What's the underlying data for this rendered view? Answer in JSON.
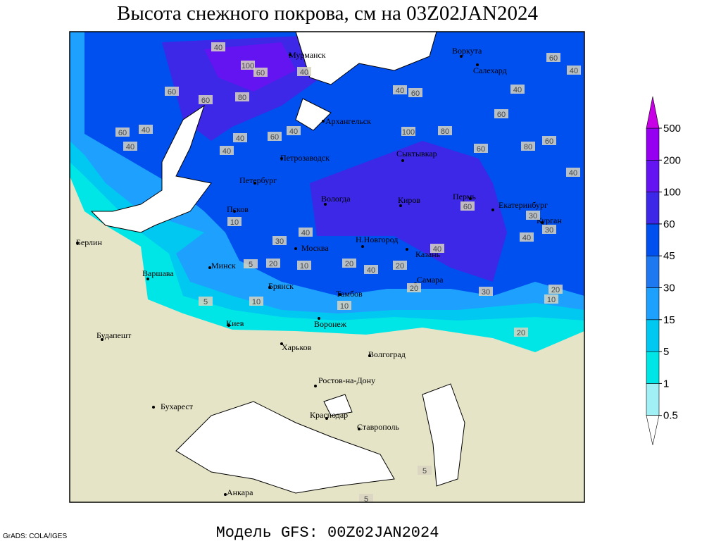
{
  "header": {
    "title": "Высота снежного покрова, см на 03Z02JAN2024"
  },
  "footer": {
    "model": "Модель GFS: 00Z02JAN2024",
    "credit": "GrADS: COLA/IGES"
  },
  "map": {
    "cities": [
      "Мурманск",
      "Воркута",
      "Салехард",
      "Архангельск",
      "Петрозаводск",
      "Сыктывкар",
      "Петербург",
      "Вологда",
      "Киров",
      "Пермь",
      "Екатеринбург",
      "Курган",
      "Псков",
      "Москва",
      "Н.Новгород",
      "Казань",
      "Берлин",
      "Минск",
      "Варшава",
      "Брянск",
      "Тамбов",
      "Самара",
      "Киев",
      "Воронеж",
      "Будапешт",
      "Харьков",
      "Волгоград",
      "Ростов-на-Дону",
      "Бухарест",
      "Краснодар",
      "Ставрополь",
      "Анкара"
    ],
    "contour_labels": [
      40,
      100,
      60,
      40,
      60,
      60,
      80,
      60,
      40,
      40,
      40,
      40,
      60,
      40,
      40,
      60,
      100,
      80,
      60,
      80,
      60,
      40,
      40,
      60,
      60,
      40,
      60,
      30,
      30,
      40,
      10,
      30,
      40,
      20,
      10,
      5,
      20,
      40,
      20,
      40,
      20,
      20,
      10,
      30,
      10,
      5,
      10,
      20,
      5,
      5
    ]
  },
  "legend": {
    "levels": [
      0.5,
      1,
      5,
      15,
      30,
      45,
      60,
      100,
      200,
      500
    ],
    "colors": [
      "#ffffff",
      "#a0f0f5",
      "#00e6e6",
      "#00c8f0",
      "#1ea0ff",
      "#1e78f0",
      "#0050f0",
      "#3c28e6",
      "#6414f0",
      "#9600f0",
      "#c800e6"
    ]
  }
}
